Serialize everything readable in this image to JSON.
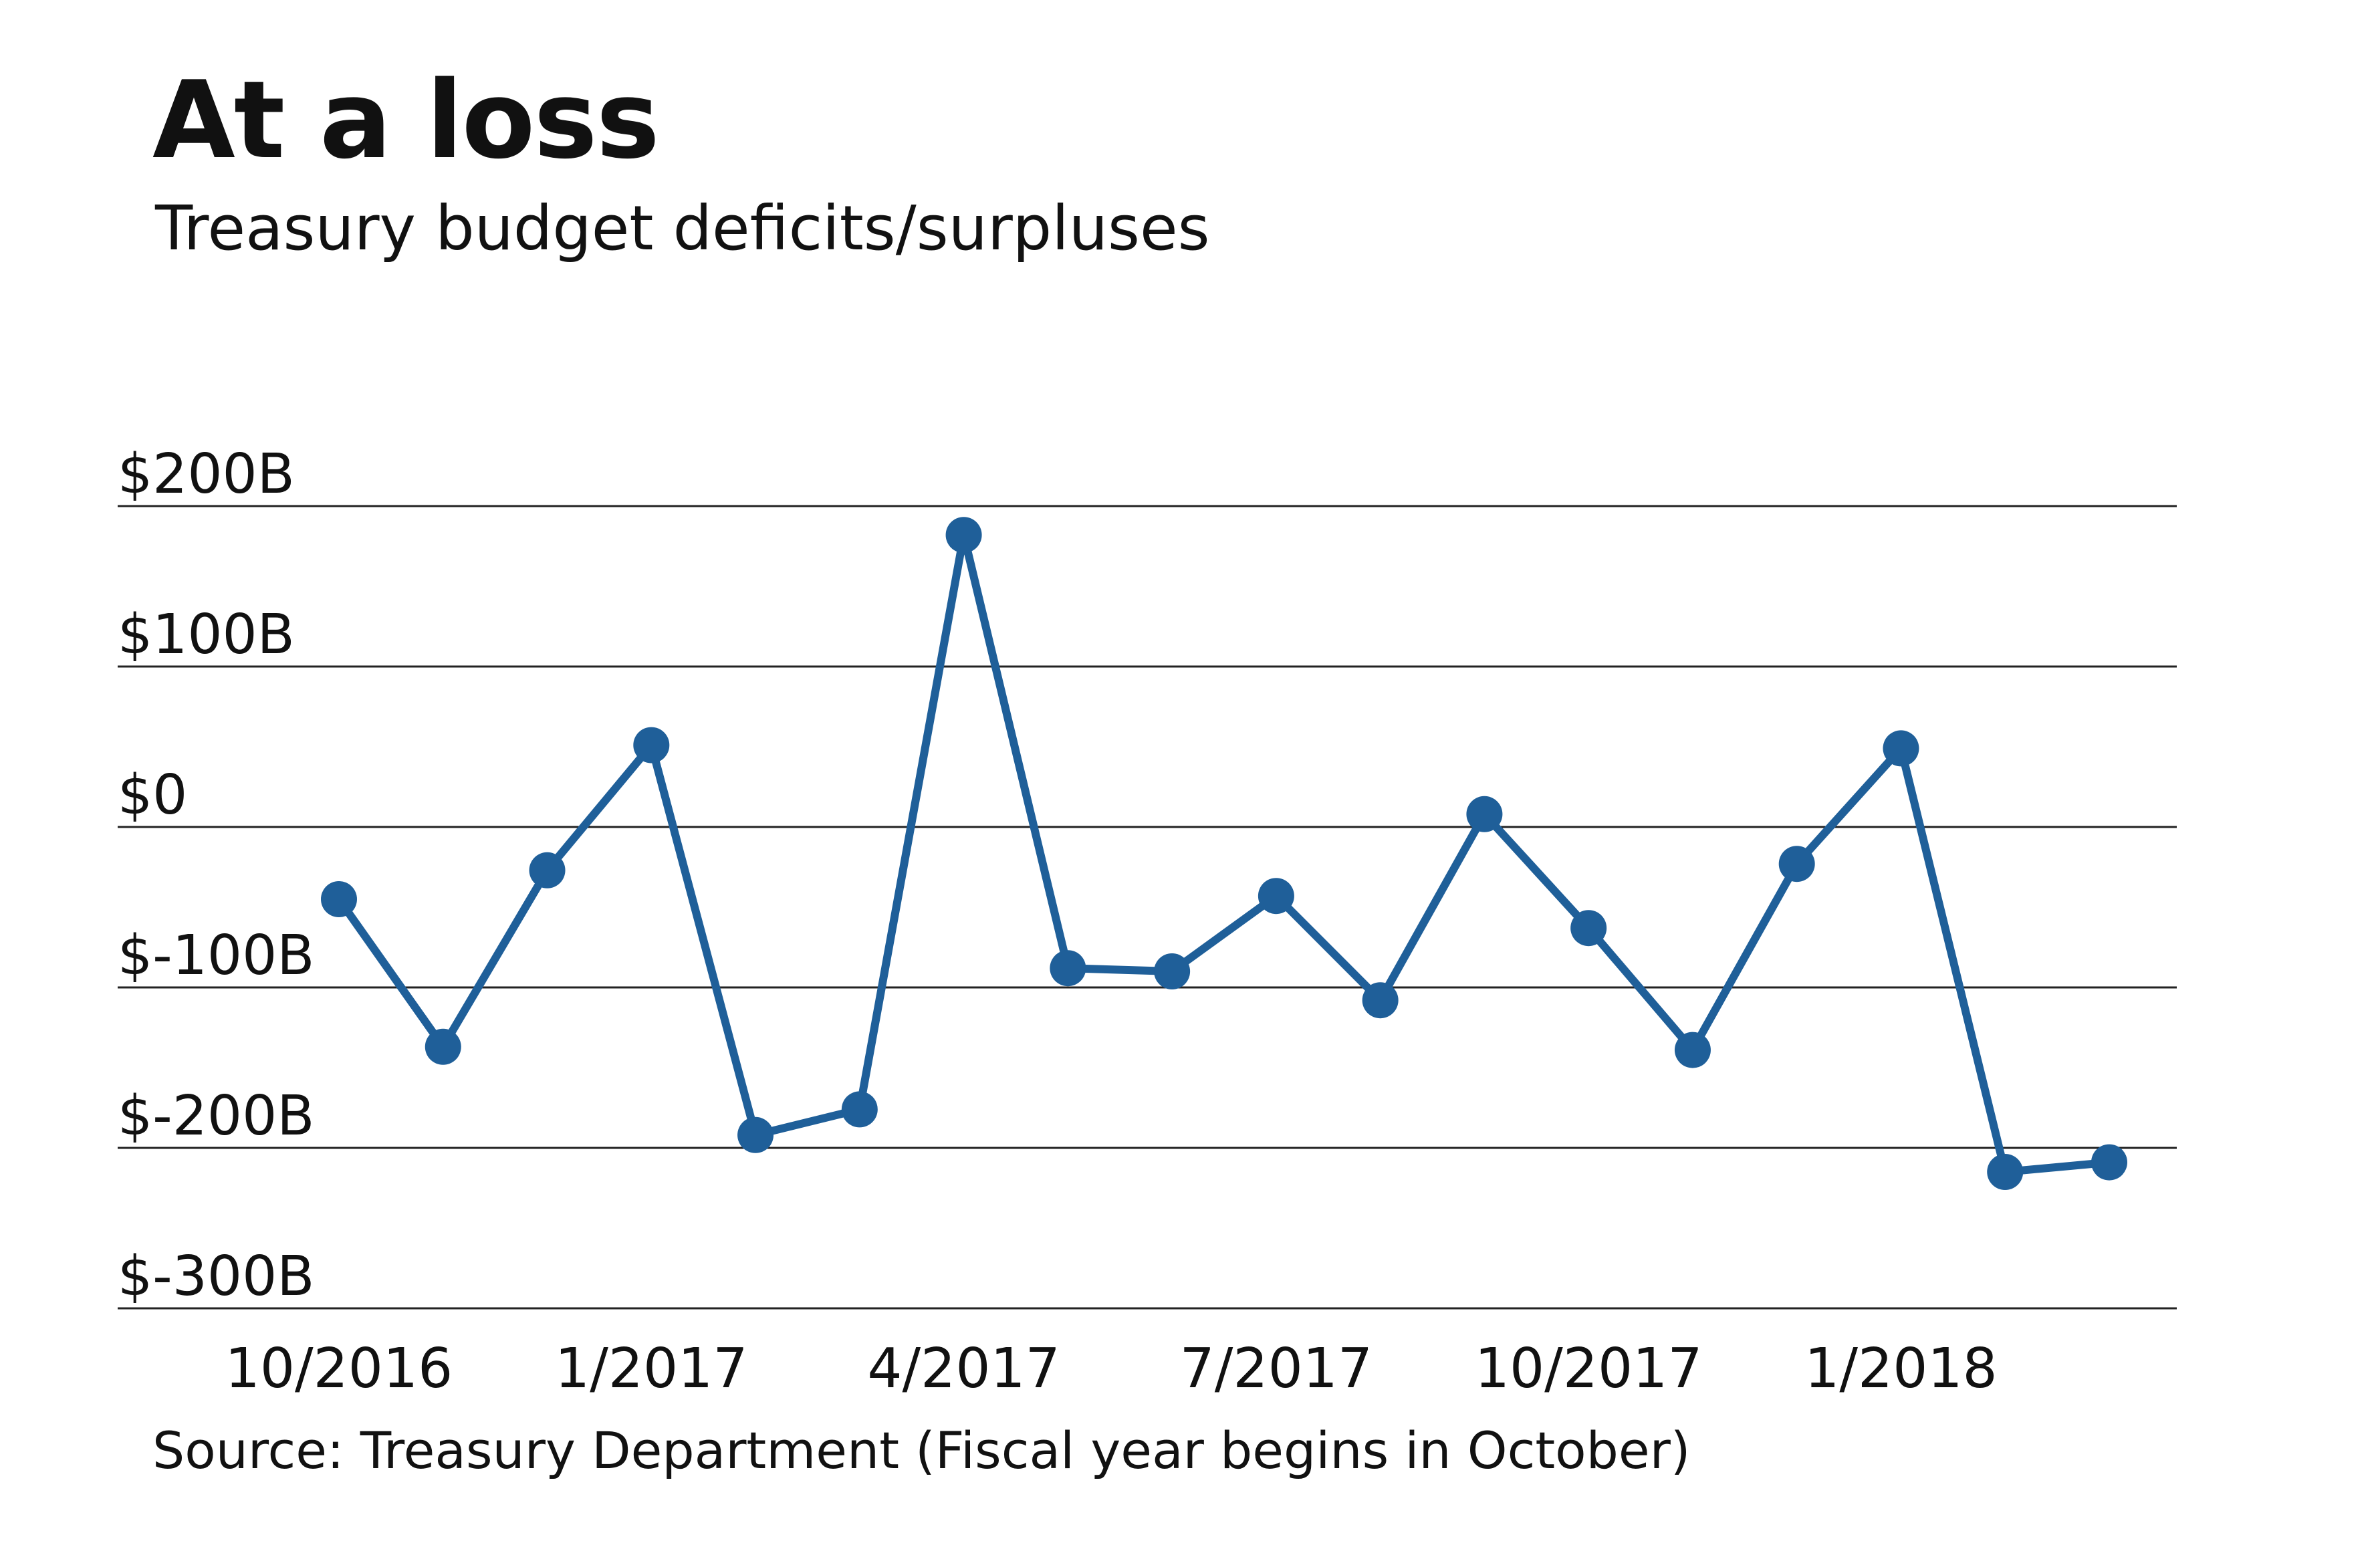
{
  "chart_data": {
    "type": "line",
    "title": "At a loss",
    "subtitle": "Treasury budget deficits/surpluses",
    "source": "Source: Treasury Department (Fiscal year begins in October)",
    "xlabel": "",
    "ylabel": "",
    "x": [
      "10/2016",
      "11/2016",
      "12/2016",
      "1/2017",
      "2/2017",
      "3/2017",
      "4/2017",
      "5/2017",
      "6/2017",
      "7/2017",
      "8/2017",
      "9/2017",
      "10/2017",
      "11/2017",
      "12/2017",
      "1/2018",
      "2/2018",
      "3/2018"
    ],
    "series": [
      {
        "values": [
          -45,
          -137,
          -27,
          51,
          -192,
          -176,
          182,
          -88,
          -90,
          -43,
          -108,
          8,
          -63,
          -139,
          -23,
          49,
          -215,
          -209
        ]
      }
    ],
    "ylim": [
      -300,
      200
    ],
    "yticks": [
      200,
      100,
      0,
      -100,
      -200,
      -300
    ],
    "ytick_labels": [
      "$200B",
      "$100B",
      "$0",
      "$-100B",
      "$-200B",
      "$-300B"
    ],
    "xticks": [
      "10/2016",
      "1/2017",
      "4/2017",
      "7/2017",
      "10/2017",
      "1/2018"
    ],
    "grid": true,
    "legend": "none",
    "colors": {
      "line": "#1f5f99",
      "grid": "#222222"
    }
  }
}
